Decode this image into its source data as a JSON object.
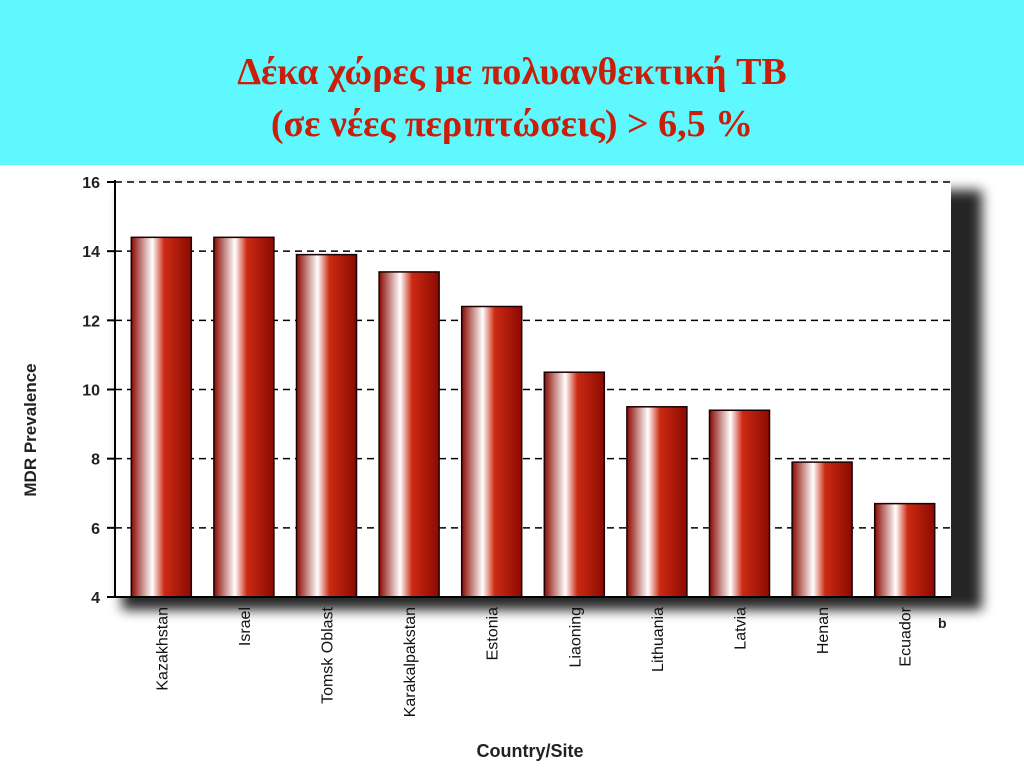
{
  "slide": {
    "title_line1": "Δέκα χώρες με πολυανθεκτική TB",
    "title_line2": "(σε νέες περιπτώσεις)  >  6,5 %"
  },
  "colors": {
    "header_bg": "#5ef8fe",
    "title": "#c81e0a",
    "bar_dark": "#8b0a02",
    "bar_light": "#ffffff"
  },
  "chart_data": {
    "type": "bar",
    "title": "",
    "xlabel": "Country/Site",
    "ylabel": "MDR Prevalence",
    "categories": [
      "Kazakhstan",
      "Israel",
      "Tomsk Oblast",
      "Karakalpakstan",
      "Estonia",
      "Liaoning",
      "Lithuania",
      "Latvia",
      "Henan",
      "Ecuador"
    ],
    "values": [
      14.4,
      14.4,
      13.9,
      13.4,
      12.4,
      10.5,
      9.5,
      9.4,
      7.9,
      6.7
    ],
    "ylim": [
      4,
      16
    ],
    "yticks": [
      4,
      6,
      8,
      10,
      12,
      14,
      16
    ],
    "grid": "horizontal dashed",
    "footnote_marker": "b"
  }
}
